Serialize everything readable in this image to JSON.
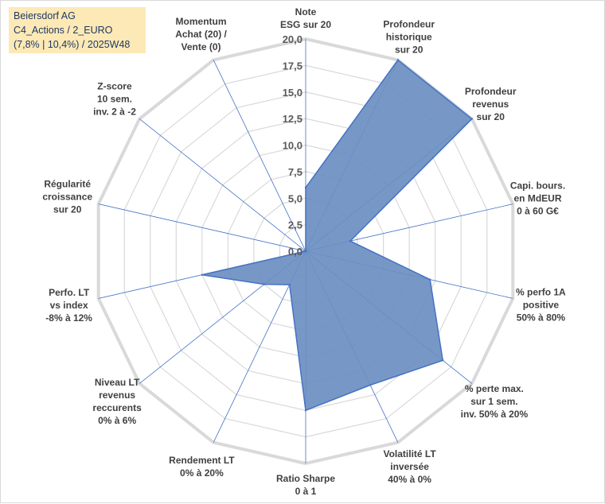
{
  "header": {
    "line1": "Beiersdorf AG",
    "line2": "C4_Actions / 2_EURO",
    "line3": "(7,8% | 10,4%) / 2025W48"
  },
  "chart_data": {
    "type": "radar",
    "title": "Beiersdorf AG",
    "rmin": 0,
    "rmax": 20,
    "ticks": [
      "0,0",
      "2,5",
      "5,0",
      "7,5",
      "10,0",
      "12,5",
      "15,0",
      "17,5",
      "20,0"
    ],
    "categories": [
      [
        "Note",
        "ESG sur 20"
      ],
      [
        "Profondeur",
        "historique",
        "sur 20"
      ],
      [
        "Profondeur",
        "revenus",
        "sur 20"
      ],
      [
        "Capi. bours.",
        "en MdEUR",
        "0 à 60 G€"
      ],
      [
        "% perfo 1A",
        "positive",
        "50% à 80%"
      ],
      [
        "% perte max.",
        "sur 1 sem.",
        "inv. 50% à 20%"
      ],
      [
        "Volatilité LT",
        "inversée",
        "40% à 0%"
      ],
      [
        "Ratio Sharpe",
        "0 à 1"
      ],
      [
        "Rendement LT",
        "0% à 20%"
      ],
      [
        "Niveau LT",
        "revenus",
        "reccurents",
        "0% à 6%"
      ],
      [
        "Perfo. LT",
        "vs index",
        "-8% à 12%"
      ],
      [
        "Régularité",
        "croissance",
        "sur 20"
      ],
      [
        "Z-score",
        "10 sem.",
        "inv. 2 à -2"
      ],
      [
        "Momentum",
        "Achat (20) /",
        "Vente (0)"
      ]
    ],
    "values": [
      6,
      20,
      20,
      4.3,
      12,
      16.5,
      14,
      15,
      3.5,
      5,
      10,
      0,
      0,
      0
    ],
    "colors": {
      "fill": "#6b8fc1",
      "stroke": "#4472c4",
      "grid": "#d9d9d9",
      "axis": "#4472c4"
    },
    "grid": true,
    "legend": "none"
  }
}
